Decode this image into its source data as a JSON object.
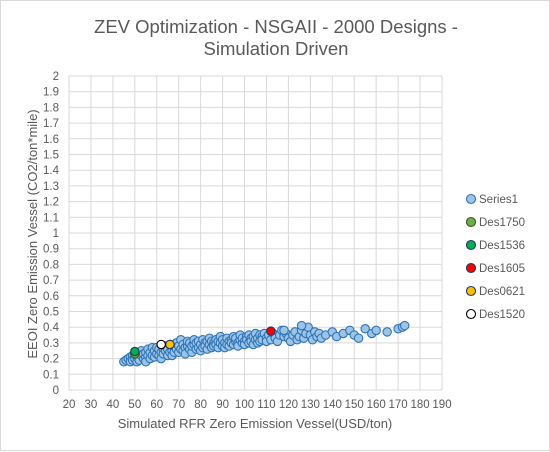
{
  "chart_data": {
    "type": "scatter",
    "title": [
      "ZEV Optimization - NSGAII - 2000 Designs -",
      "Simulation Driven"
    ],
    "xlabel": "Simulated RFR Zero Emission Vessel(USD/ton)",
    "ylabel": "EEOI Zero Emission Vessel (CO2/ton*mile)",
    "xlim": [
      20,
      190
    ],
    "ylim": [
      0,
      2
    ],
    "x_ticks": [
      20,
      30,
      40,
      50,
      60,
      70,
      80,
      90,
      100,
      110,
      120,
      130,
      140,
      150,
      160,
      170,
      180,
      190
    ],
    "y_ticks": [
      0,
      0.1,
      0.2,
      0.3,
      0.4,
      0.5,
      0.6,
      0.7,
      0.8,
      0.9,
      1,
      1.1,
      1.2,
      1.3,
      1.4,
      1.5,
      1.6,
      1.7,
      1.8,
      1.9,
      2
    ],
    "x_tick_labels": [
      "20",
      "30",
      "40",
      "50",
      "60",
      "70",
      "80",
      "90",
      "100",
      "110",
      "120",
      "130",
      "140",
      "150",
      "160",
      "170",
      "180",
      "190"
    ],
    "y_tick_labels": [
      "0",
      "0.1",
      "0.2",
      "0.3",
      "0.4",
      "0.5",
      "0.6",
      "0.7",
      "0.8",
      "0.9",
      "1",
      "1.1",
      "1.2",
      "1.3",
      "1.4",
      "1.5",
      "1.6",
      "1.7",
      "1.8",
      "1.9",
      "2"
    ],
    "grid": true,
    "legend_position": "right",
    "series": [
      {
        "name": "Series1",
        "color": "#9dc3e6",
        "edge": "#2e75b6",
        "points": [
          [
            45,
            0.18
          ],
          [
            46,
            0.19
          ],
          [
            47,
            0.2
          ],
          [
            48,
            0.21
          ],
          [
            48,
            0.18
          ],
          [
            49,
            0.22
          ],
          [
            49,
            0.19
          ],
          [
            50,
            0.2
          ],
          [
            50,
            0.23
          ],
          [
            51,
            0.18
          ],
          [
            51,
            0.21
          ],
          [
            52,
            0.24
          ],
          [
            52,
            0.19
          ],
          [
            53,
            0.22
          ],
          [
            53,
            0.25
          ],
          [
            54,
            0.2
          ],
          [
            54,
            0.23
          ],
          [
            55,
            0.21
          ],
          [
            55,
            0.24
          ],
          [
            55,
            0.18
          ],
          [
            56,
            0.22
          ],
          [
            56,
            0.26
          ],
          [
            57,
            0.2
          ],
          [
            57,
            0.24
          ],
          [
            58,
            0.22
          ],
          [
            58,
            0.27
          ],
          [
            59,
            0.21
          ],
          [
            59,
            0.25
          ],
          [
            60,
            0.23
          ],
          [
            60,
            0.27
          ],
          [
            61,
            0.22
          ],
          [
            61,
            0.26
          ],
          [
            62,
            0.24
          ],
          [
            62,
            0.2
          ],
          [
            63,
            0.26
          ],
          [
            63,
            0.23
          ],
          [
            64,
            0.25
          ],
          [
            64,
            0.28
          ],
          [
            65,
            0.22
          ],
          [
            65,
            0.26
          ],
          [
            66,
            0.24
          ],
          [
            66,
            0.29
          ],
          [
            67,
            0.25
          ],
          [
            67,
            0.22
          ],
          [
            68,
            0.27
          ],
          [
            68,
            0.24
          ],
          [
            69,
            0.26
          ],
          [
            69,
            0.3
          ],
          [
            70,
            0.24
          ],
          [
            70,
            0.28
          ],
          [
            71,
            0.26
          ],
          [
            71,
            0.32
          ],
          [
            72,
            0.25
          ],
          [
            72,
            0.29
          ],
          [
            73,
            0.27
          ],
          [
            73,
            0.23
          ],
          [
            74,
            0.28
          ],
          [
            74,
            0.31
          ],
          [
            75,
            0.26
          ],
          [
            75,
            0.3
          ],
          [
            76,
            0.24
          ],
          [
            76,
            0.28
          ],
          [
            77,
            0.29
          ],
          [
            77,
            0.32
          ],
          [
            78,
            0.26
          ],
          [
            78,
            0.3
          ],
          [
            79,
            0.27
          ],
          [
            79,
            0.31
          ],
          [
            80,
            0.25
          ],
          [
            80,
            0.29
          ],
          [
            81,
            0.32
          ],
          [
            81,
            0.27
          ],
          [
            82,
            0.3
          ],
          [
            82,
            0.28
          ],
          [
            83,
            0.31
          ],
          [
            83,
            0.26
          ],
          [
            84,
            0.29
          ],
          [
            84,
            0.33
          ],
          [
            85,
            0.27
          ],
          [
            85,
            0.31
          ],
          [
            86,
            0.3
          ],
          [
            86,
            0.28
          ],
          [
            87,
            0.32
          ],
          [
            87,
            0.29
          ],
          [
            88,
            0.27
          ],
          [
            88,
            0.31
          ],
          [
            89,
            0.3
          ],
          [
            89,
            0.34
          ],
          [
            90,
            0.28
          ],
          [
            90,
            0.32
          ],
          [
            91,
            0.3
          ],
          [
            91,
            0.27
          ],
          [
            92,
            0.33
          ],
          [
            92,
            0.29
          ],
          [
            93,
            0.31
          ],
          [
            93,
            0.28
          ],
          [
            94,
            0.32
          ],
          [
            94,
            0.3
          ],
          [
            95,
            0.34
          ],
          [
            95,
            0.29
          ],
          [
            96,
            0.31
          ],
          [
            96,
            0.33
          ],
          [
            97,
            0.3
          ],
          [
            97,
            0.28
          ],
          [
            98,
            0.32
          ],
          [
            98,
            0.35
          ],
          [
            99,
            0.3
          ],
          [
            99,
            0.33
          ],
          [
            100,
            0.31
          ],
          [
            100,
            0.29
          ],
          [
            101,
            0.34
          ],
          [
            101,
            0.32
          ],
          [
            102,
            0.3
          ],
          [
            102,
            0.35
          ],
          [
            103,
            0.33
          ],
          [
            103,
            0.31
          ],
          [
            104,
            0.29
          ],
          [
            104,
            0.34
          ],
          [
            105,
            0.32
          ],
          [
            105,
            0.36
          ],
          [
            106,
            0.3
          ],
          [
            106,
            0.33
          ],
          [
            107,
            0.35
          ],
          [
            107,
            0.31
          ],
          [
            108,
            0.34
          ],
          [
            108,
            0.32
          ],
          [
            109,
            0.36
          ],
          [
            110,
            0.33
          ],
          [
            110,
            0.31
          ],
          [
            111,
            0.35
          ],
          [
            112,
            0.32
          ],
          [
            113,
            0.36
          ],
          [
            114,
            0.33
          ],
          [
            115,
            0.31
          ],
          [
            116,
            0.35
          ],
          [
            117,
            0.38
          ],
          [
            118,
            0.34
          ],
          [
            119,
            0.36
          ],
          [
            120,
            0.33
          ],
          [
            121,
            0.31
          ],
          [
            122,
            0.35
          ],
          [
            123,
            0.37
          ],
          [
            124,
            0.32
          ],
          [
            125,
            0.34
          ],
          [
            126,
            0.38
          ],
          [
            127,
            0.33
          ],
          [
            128,
            0.36
          ],
          [
            129,
            0.4
          ],
          [
            130,
            0.35
          ],
          [
            131,
            0.32
          ],
          [
            132,
            0.37
          ],
          [
            133,
            0.34
          ],
          [
            134,
            0.36
          ],
          [
            135,
            0.33
          ],
          [
            137,
            0.35
          ],
          [
            140,
            0.37
          ],
          [
            142,
            0.34
          ],
          [
            145,
            0.36
          ],
          [
            148,
            0.38
          ],
          [
            150,
            0.35
          ],
          [
            152,
            0.33
          ],
          [
            155,
            0.39
          ],
          [
            158,
            0.36
          ],
          [
            160,
            0.38
          ],
          [
            165,
            0.37
          ],
          [
            170,
            0.39
          ],
          [
            172,
            0.4
          ],
          [
            173,
            0.41
          ],
          [
            126,
            0.41
          ],
          [
            118,
            0.38
          ]
        ]
      },
      {
        "name": "Des1750",
        "color": "#70ad47",
        "edge": "#375623",
        "points": [
          [
            50,
            0.23
          ]
        ]
      },
      {
        "name": "Des1536",
        "color": "#00b050",
        "edge": "#1f3864",
        "points": [
          [
            50,
            0.245
          ]
        ]
      },
      {
        "name": "Des1605",
        "color": "#ff0000",
        "edge": "#1f3864",
        "points": [
          [
            112,
            0.375
          ]
        ]
      },
      {
        "name": "Des0621",
        "color": "#ffc000",
        "edge": "#1f3864",
        "points": [
          [
            66,
            0.29
          ]
        ]
      },
      {
        "name": "Des1520",
        "color": "#ffffff",
        "edge": "#000000",
        "points": [
          [
            62,
            0.29
          ]
        ]
      }
    ]
  }
}
